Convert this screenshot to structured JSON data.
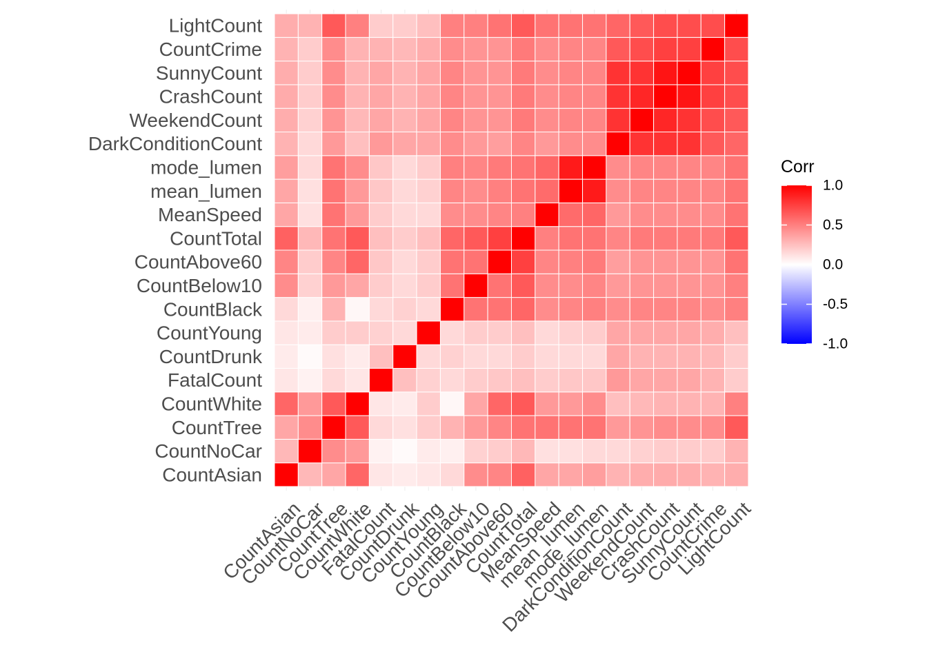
{
  "chart_data": {
    "type": "heatmap",
    "title": "",
    "xlabel": "",
    "ylabel": "",
    "variables": [
      "CountAsian",
      "CountNoCar",
      "CountTree",
      "CountWhite",
      "FatalCount",
      "CountDrunk",
      "CountYoung",
      "CountBlack",
      "CountBelow10",
      "CountAbove60",
      "CountTotal",
      "MeanSpeed",
      "mean_lumen",
      "mode_lumen",
      "DarkConditionCount",
      "WeekendCount",
      "CrashCount",
      "SunnyCount",
      "CountCrime",
      "LightCount"
    ],
    "matrix": [
      [
        1.0,
        0.28,
        0.35,
        0.6,
        0.1,
        0.08,
        0.1,
        0.15,
        0.45,
        0.48,
        0.62,
        0.35,
        0.35,
        0.38,
        0.3,
        0.32,
        0.33,
        0.32,
        0.3,
        0.32
      ],
      [
        0.28,
        1.0,
        0.45,
        0.4,
        0.05,
        0.02,
        0.08,
        0.06,
        0.18,
        0.2,
        0.28,
        0.12,
        0.12,
        0.15,
        0.15,
        0.18,
        0.2,
        0.2,
        0.2,
        0.3
      ],
      [
        0.35,
        0.45,
        1.0,
        0.65,
        0.15,
        0.12,
        0.2,
        0.3,
        0.4,
        0.48,
        0.55,
        0.55,
        0.55,
        0.55,
        0.4,
        0.42,
        0.45,
        0.45,
        0.45,
        0.65
      ],
      [
        0.6,
        0.4,
        0.65,
        1.0,
        0.1,
        0.08,
        0.2,
        0.03,
        0.35,
        0.6,
        0.65,
        0.4,
        0.4,
        0.45,
        0.25,
        0.28,
        0.3,
        0.3,
        0.3,
        0.5
      ],
      [
        0.1,
        0.05,
        0.15,
        0.1,
        1.0,
        0.25,
        0.18,
        0.15,
        0.2,
        0.22,
        0.25,
        0.2,
        0.22,
        0.22,
        0.4,
        0.35,
        0.35,
        0.35,
        0.3,
        0.2
      ],
      [
        0.08,
        0.02,
        0.12,
        0.08,
        0.25,
        1.0,
        0.15,
        0.18,
        0.15,
        0.15,
        0.2,
        0.15,
        0.15,
        0.15,
        0.35,
        0.3,
        0.3,
        0.3,
        0.28,
        0.2
      ],
      [
        0.1,
        0.08,
        0.2,
        0.2,
        0.18,
        0.15,
        1.0,
        0.15,
        0.2,
        0.2,
        0.25,
        0.15,
        0.18,
        0.2,
        0.35,
        0.35,
        0.35,
        0.35,
        0.32,
        0.25
      ],
      [
        0.15,
        0.06,
        0.3,
        0.03,
        0.15,
        0.18,
        0.15,
        1.0,
        0.55,
        0.55,
        0.6,
        0.45,
        0.48,
        0.5,
        0.45,
        0.48,
        0.48,
        0.48,
        0.45,
        0.5
      ],
      [
        0.45,
        0.18,
        0.4,
        0.35,
        0.2,
        0.15,
        0.2,
        0.55,
        1.0,
        0.55,
        0.65,
        0.45,
        0.45,
        0.48,
        0.4,
        0.42,
        0.42,
        0.42,
        0.42,
        0.5
      ],
      [
        0.48,
        0.2,
        0.48,
        0.6,
        0.22,
        0.15,
        0.2,
        0.55,
        0.55,
        1.0,
        0.75,
        0.48,
        0.5,
        0.52,
        0.38,
        0.42,
        0.42,
        0.42,
        0.42,
        0.55
      ],
      [
        0.62,
        0.28,
        0.55,
        0.65,
        0.25,
        0.2,
        0.25,
        0.6,
        0.65,
        0.75,
        1.0,
        0.5,
        0.55,
        0.55,
        0.48,
        0.52,
        0.52,
        0.52,
        0.52,
        0.65
      ],
      [
        0.35,
        0.12,
        0.55,
        0.4,
        0.2,
        0.15,
        0.15,
        0.45,
        0.45,
        0.48,
        0.5,
        1.0,
        0.58,
        0.6,
        0.4,
        0.45,
        0.45,
        0.45,
        0.45,
        0.55
      ],
      [
        0.35,
        0.12,
        0.55,
        0.4,
        0.22,
        0.15,
        0.18,
        0.48,
        0.45,
        0.5,
        0.55,
        0.58,
        1.0,
        0.9,
        0.45,
        0.48,
        0.48,
        0.48,
        0.48,
        0.55
      ],
      [
        0.38,
        0.15,
        0.55,
        0.45,
        0.22,
        0.15,
        0.2,
        0.5,
        0.48,
        0.52,
        0.55,
        0.6,
        0.9,
        1.0,
        0.45,
        0.48,
        0.48,
        0.48,
        0.48,
        0.55
      ],
      [
        0.3,
        0.15,
        0.4,
        0.25,
        0.4,
        0.35,
        0.35,
        0.45,
        0.4,
        0.38,
        0.48,
        0.4,
        0.45,
        0.45,
        1.0,
        0.8,
        0.8,
        0.8,
        0.65,
        0.6
      ],
      [
        0.32,
        0.18,
        0.42,
        0.28,
        0.35,
        0.3,
        0.35,
        0.48,
        0.42,
        0.42,
        0.52,
        0.45,
        0.48,
        0.48,
        0.8,
        1.0,
        0.85,
        0.8,
        0.7,
        0.65
      ],
      [
        0.33,
        0.2,
        0.45,
        0.3,
        0.35,
        0.3,
        0.35,
        0.48,
        0.42,
        0.42,
        0.52,
        0.45,
        0.48,
        0.48,
        0.8,
        0.85,
        1.0,
        0.92,
        0.75,
        0.7
      ],
      [
        0.32,
        0.2,
        0.45,
        0.3,
        0.35,
        0.3,
        0.35,
        0.48,
        0.42,
        0.42,
        0.52,
        0.45,
        0.48,
        0.48,
        0.8,
        0.8,
        0.92,
        1.0,
        0.75,
        0.7
      ],
      [
        0.3,
        0.2,
        0.45,
        0.3,
        0.3,
        0.28,
        0.32,
        0.45,
        0.42,
        0.42,
        0.52,
        0.45,
        0.48,
        0.48,
        0.65,
        0.7,
        0.75,
        0.75,
        1.0,
        0.7
      ],
      [
        0.32,
        0.3,
        0.65,
        0.5,
        0.2,
        0.2,
        0.25,
        0.5,
        0.5,
        0.55,
        0.65,
        0.55,
        0.55,
        0.55,
        0.6,
        0.65,
        0.7,
        0.7,
        0.7,
        1.0
      ]
    ],
    "value_range": [
      -1.0,
      1.0
    ],
    "legend": {
      "title": "Corr",
      "ticks": [
        1.0,
        0.5,
        0.0,
        -0.5,
        -1.0
      ],
      "tick_labels": [
        "1.0",
        "0.5",
        "0.0",
        "-0.5",
        "-1.0"
      ],
      "placement": "right"
    },
    "colors": {
      "low": "#0000ff",
      "mid": "#ffffff",
      "high": "#ff0000",
      "cell_border": "#ffffff"
    },
    "grid": false
  }
}
